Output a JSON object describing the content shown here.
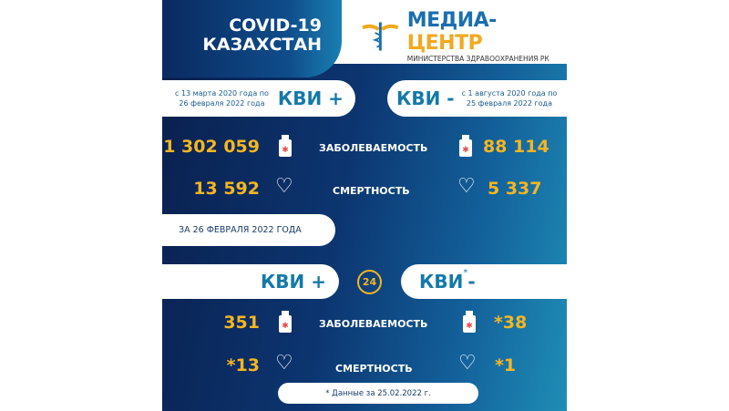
{
  "header": {
    "title_line1": "COVID-19",
    "title_line2": "КАЗАХСТАН",
    "logo_name_a": "МЕДИА-",
    "logo_name_b": "ЦЕНТР",
    "logo_subtitle": "МИНИСТЕРСТВА ЗДРАВООХРАНЕНИЯ РК"
  },
  "total": {
    "left": {
      "period_line1": "с 13 марта 2020 года по",
      "period_line2": "26 февраля 2022 года",
      "tag": "КВИ +",
      "cases": "1 302 059",
      "deaths": "13 592"
    },
    "right": {
      "period_line1": "с 1 августа 2020 года по",
      "period_line2": "25 февраля 2022 года",
      "tag": "КВИ -",
      "cases": "88 114",
      "deaths": "5 337"
    },
    "cases_label": "ЗАБОЛЕВАЕМОСТЬ",
    "deaths_label": "СМЕРТНОСТЬ"
  },
  "daily": {
    "date_label": "ЗА 26 ФЕВРАЛЯ 2022 ГОДА",
    "icon_24": "24",
    "left": {
      "tag": "КВИ +",
      "cases": "351",
      "deaths": "*13"
    },
    "right": {
      "tag": "КВИ",
      "tag_mark": "*",
      "tag_sign": "-",
      "cases": "*38",
      "deaths": "*1"
    },
    "cases_label": "ЗАБОЛЕВАЕМОСТЬ",
    "deaths_label": "СМЕРТНОСТЬ",
    "footnote": "* Данные за 25.02.2022 г."
  },
  "colors": {
    "accent": "#f5b622",
    "brand_blue": "#1479a9",
    "bg_dark": "#0a1f4d"
  }
}
